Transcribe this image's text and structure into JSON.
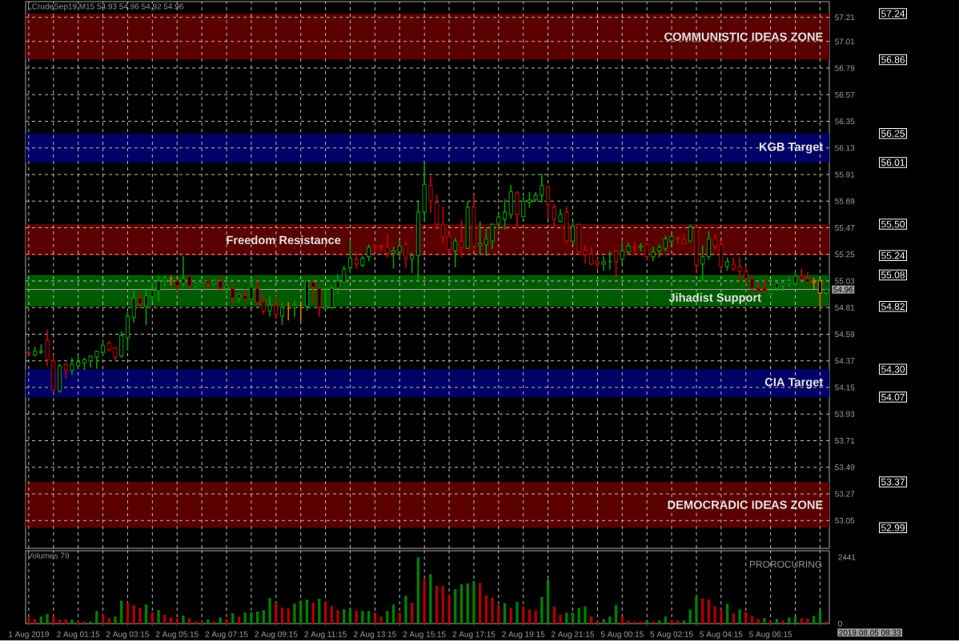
{
  "chart_data": [
    {
      "type": "candlestick",
      "title": "LCrudeSep19,M15  54.93 54.96 54.92 54.96",
      "categories": [
        null,
        null,
        null,
        null,
        null,
        null,
        null,
        null,
        null,
        null,
        null,
        null,
        null,
        null,
        null,
        null,
        null,
        null,
        null,
        null,
        null,
        null,
        null,
        null,
        null,
        null,
        null,
        null,
        null,
        null,
        null,
        null,
        null,
        null,
        null,
        null,
        null,
        null,
        null,
        null,
        null,
        null,
        null,
        null,
        null,
        null,
        null,
        null,
        null,
        null,
        null,
        null,
        null,
        null,
        null,
        null,
        null,
        null,
        null,
        null,
        null,
        null,
        null,
        null,
        null,
        null,
        null,
        null,
        null,
        null,
        null,
        null,
        null,
        null,
        null,
        null,
        null,
        null,
        null,
        null,
        null,
        null,
        null,
        null,
        null,
        null,
        null,
        null,
        null,
        null,
        null,
        null,
        null,
        null,
        null,
        null,
        null,
        null,
        null,
        null,
        null,
        null,
        null,
        null,
        null,
        null,
        null,
        null,
        null,
        null,
        null,
        null,
        null,
        null,
        null,
        null,
        null,
        null,
        null,
        null,
        null,
        null,
        null,
        null,
        null,
        null,
        null,
        null,
        null,
        null
      ],
      "ohlc": [
        [
          54.44,
          54.45,
          54.43,
          54.43
        ],
        [
          54.42,
          54.48,
          54.41,
          54.45
        ],
        [
          54.44,
          54.5,
          54.43,
          54.45
        ],
        [
          54.54,
          54.62,
          54.33,
          54.38
        ],
        [
          54.37,
          54.41,
          54.11,
          54.13
        ],
        [
          54.12,
          54.34,
          54.11,
          54.33
        ],
        [
          54.34,
          54.35,
          54.23,
          54.29
        ],
        [
          54.29,
          54.39,
          54.26,
          54.34
        ],
        [
          54.33,
          54.41,
          54.33,
          54.36
        ],
        [
          54.35,
          54.39,
          54.3,
          54.38
        ],
        [
          54.37,
          54.41,
          54.32,
          54.41
        ],
        [
          54.4,
          54.45,
          54.31,
          54.45
        ],
        [
          54.44,
          54.54,
          54.42,
          54.5
        ],
        [
          54.52,
          54.53,
          54.45,
          54.46
        ],
        [
          54.48,
          54.48,
          54.38,
          54.4
        ],
        [
          54.41,
          54.61,
          54.4,
          54.58
        ],
        [
          54.56,
          54.77,
          54.46,
          54.74
        ],
        [
          54.73,
          54.95,
          54.69,
          54.89
        ],
        [
          54.89,
          54.93,
          54.81,
          54.84
        ],
        [
          54.82,
          54.95,
          54.67,
          54.91
        ],
        [
          54.9,
          55.01,
          54.86,
          54.95
        ],
        [
          54.95,
          55.07,
          54.87,
          55.03
        ],
        [
          55.03,
          55.07,
          54.99,
          55.05
        ],
        [
          55.05,
          55.07,
          55.0,
          55.05
        ],
        [
          55.03,
          55.04,
          54.95,
          54.99
        ],
        [
          55.01,
          55.23,
          54.99,
          55.05
        ],
        [
          55.07,
          55.07,
          54.97,
          54.99
        ],
        [
          54.99,
          55.01,
          54.96,
          55.01
        ],
        [
          54.99,
          55.03,
          54.99,
          55.01
        ],
        [
          55.03,
          55.04,
          54.97,
          55.01
        ],
        [
          55.01,
          55.05,
          55.0,
          55.03
        ],
        [
          55.03,
          55.07,
          54.95,
          54.97
        ],
        [
          54.97,
          55.01,
          54.93,
          54.99
        ],
        [
          54.97,
          54.98,
          54.84,
          54.89
        ],
        [
          54.89,
          54.92,
          54.86,
          54.92
        ],
        [
          54.91,
          54.96,
          54.87,
          54.88
        ],
        [
          54.88,
          55.05,
          54.88,
          54.98
        ],
        [
          54.97,
          55.04,
          54.82,
          54.85
        ],
        [
          54.86,
          54.92,
          54.76,
          54.78
        ],
        [
          54.78,
          54.9,
          54.74,
          54.83
        ],
        [
          54.83,
          54.9,
          54.72,
          54.75
        ],
        [
          54.74,
          54.85,
          54.67,
          54.81
        ],
        [
          54.8,
          54.85,
          54.71,
          54.8
        ],
        [
          54.81,
          54.86,
          54.74,
          54.83
        ],
        [
          54.83,
          54.86,
          54.7,
          54.83
        ],
        [
          54.82,
          55.03,
          54.79,
          55.03
        ],
        [
          55.02,
          55.04,
          54.86,
          54.98
        ],
        [
          54.97,
          54.98,
          54.74,
          54.81
        ],
        [
          54.8,
          54.97,
          54.8,
          54.82
        ],
        [
          54.81,
          54.99,
          54.8,
          54.97
        ],
        [
          54.97,
          55.08,
          54.93,
          55.03
        ],
        [
          55.02,
          55.15,
          55.02,
          55.13
        ],
        [
          55.14,
          55.36,
          55.1,
          55.22
        ],
        [
          55.21,
          55.26,
          55.14,
          55.17
        ],
        [
          55.16,
          55.23,
          55.15,
          55.22
        ],
        [
          55.23,
          55.33,
          55.2,
          55.31
        ],
        [
          55.32,
          55.33,
          55.27,
          55.31
        ],
        [
          55.32,
          55.33,
          55.28,
          55.31
        ],
        [
          55.31,
          55.41,
          55.23,
          55.26
        ],
        [
          55.26,
          55.31,
          55.14,
          55.28
        ],
        [
          55.27,
          55.36,
          55.23,
          55.32
        ],
        [
          55.33,
          55.35,
          55.14,
          55.22
        ],
        [
          55.21,
          55.24,
          55.1,
          55.24
        ],
        [
          55.24,
          55.68,
          55.04,
          55.6
        ],
        [
          55.6,
          56.02,
          55.54,
          55.83
        ],
        [
          55.82,
          55.89,
          55.6,
          55.69
        ],
        [
          55.68,
          55.74,
          55.46,
          55.5
        ],
        [
          55.5,
          55.64,
          55.35,
          55.4
        ],
        [
          55.4,
          55.43,
          55.26,
          55.29
        ],
        [
          55.28,
          55.38,
          55.15,
          55.36
        ],
        [
          55.36,
          55.53,
          55.23,
          55.31
        ],
        [
          55.3,
          55.68,
          55.3,
          55.64
        ],
        [
          55.64,
          55.74,
          55.3,
          55.32
        ],
        [
          55.32,
          55.52,
          55.25,
          55.34
        ],
        [
          55.33,
          55.46,
          55.24,
          55.38
        ],
        [
          55.36,
          55.5,
          55.3,
          55.5
        ],
        [
          55.5,
          55.58,
          55.46,
          55.56
        ],
        [
          55.54,
          55.7,
          55.46,
          55.6
        ],
        [
          55.58,
          55.82,
          55.55,
          55.77
        ],
        [
          55.76,
          55.77,
          55.47,
          55.58
        ],
        [
          55.56,
          55.72,
          55.56,
          55.69
        ],
        [
          55.68,
          55.76,
          55.64,
          55.7
        ],
        [
          55.7,
          55.76,
          55.69,
          55.74
        ],
        [
          55.74,
          55.91,
          55.68,
          55.82
        ],
        [
          55.81,
          55.81,
          55.55,
          55.66
        ],
        [
          55.64,
          55.66,
          55.48,
          55.54
        ],
        [
          55.52,
          55.62,
          55.52,
          55.58
        ],
        [
          55.6,
          55.64,
          55.35,
          55.36
        ],
        [
          55.36,
          55.52,
          55.34,
          55.48
        ],
        [
          55.5,
          55.5,
          55.25,
          55.27
        ],
        [
          55.28,
          55.32,
          55.18,
          55.25
        ],
        [
          55.25,
          55.31,
          55.17,
          55.17
        ],
        [
          55.19,
          55.21,
          55.13,
          55.17
        ],
        [
          55.17,
          55.23,
          55.12,
          55.19
        ],
        [
          55.19,
          55.27,
          55.13,
          55.19
        ],
        [
          55.28,
          55.28,
          55.06,
          55.19
        ],
        [
          55.21,
          55.35,
          55.18,
          55.28
        ],
        [
          55.27,
          55.34,
          55.25,
          55.32
        ],
        [
          55.31,
          55.35,
          55.25,
          55.3
        ],
        [
          55.31,
          55.34,
          55.28,
          55.32
        ],
        [
          55.33,
          55.34,
          55.21,
          55.23
        ],
        [
          55.23,
          55.31,
          55.2,
          55.27
        ],
        [
          55.28,
          55.33,
          55.23,
          55.31
        ],
        [
          55.3,
          55.4,
          55.28,
          55.38
        ],
        [
          55.36,
          55.41,
          55.34,
          55.4
        ],
        [
          55.39,
          55.4,
          55.34,
          55.38
        ],
        [
          55.37,
          55.41,
          55.34,
          55.34
        ],
        [
          55.36,
          55.49,
          55.36,
          55.48
        ],
        [
          55.47,
          55.48,
          55.1,
          55.16
        ],
        [
          55.17,
          55.32,
          55.04,
          55.23
        ],
        [
          55.23,
          55.44,
          55.21,
          55.38
        ],
        [
          55.38,
          55.41,
          55.3,
          55.32
        ],
        [
          55.33,
          55.36,
          55.13,
          55.15
        ],
        [
          55.15,
          55.22,
          55.12,
          55.19
        ],
        [
          55.17,
          55.22,
          55.12,
          55.13
        ],
        [
          55.15,
          55.22,
          55.03,
          55.11
        ],
        [
          55.11,
          55.14,
          55.01,
          55.05
        ],
        [
          55.05,
          55.05,
          54.94,
          54.97
        ],
        [
          54.97,
          55.01,
          54.94,
          54.95
        ],
        [
          54.97,
          55.04,
          54.94,
          54.95
        ],
        [
          54.93,
          54.97,
          54.91,
          54.95
        ],
        [
          54.97,
          55.02,
          54.95,
          55.01
        ],
        [
          54.99,
          55.02,
          54.95,
          55.01
        ],
        [
          55.01,
          55.05,
          54.99,
          55.03
        ],
        [
          55.01,
          55.11,
          55.0,
          55.07
        ],
        [
          55.07,
          55.13,
          55.04,
          55.05
        ],
        [
          55.05,
          55.1,
          55.02,
          55.02
        ],
        [
          55.03,
          55.05,
          54.97,
          55.02
        ],
        [
          55.03,
          55.04,
          54.81,
          54.93
        ],
        [
          54.93,
          54.96,
          54.92,
          54.96
        ]
      ],
      "colors": [
        "#d00000",
        "#00a000",
        "#00a000",
        "#d00000",
        "#d00000",
        "#00a000",
        "#d00000",
        "#00a000",
        "#00a000",
        "#00a000",
        "#00a000",
        "#00a000",
        "#00a000",
        "#d00000",
        "#d00000",
        "#00a000",
        "#00a000",
        "#00a000",
        "#d00000",
        "#00a000",
        "#00a000",
        "#00a000",
        "#00a000",
        "#e07000",
        "#d00000",
        "#00a000",
        "#d00000",
        "#00a000",
        "#00a000",
        "#d00000",
        "#00a000",
        "#d00000",
        "#00a000",
        "#d00000",
        "#00a000",
        "#d00000",
        "#00a000",
        "#d00000",
        "#d00000",
        "#00a000",
        "#d00000",
        "#00a000",
        "#e07000",
        "#00a000",
        "#e07000",
        "#00a000",
        "#d00000",
        "#d00000",
        "#00a000",
        "#00a000",
        "#00a000",
        "#00a000",
        "#00a000",
        "#d00000",
        "#00a000",
        "#00a000",
        "#d00000",
        "#d00000",
        "#d00000",
        "#00a000",
        "#00a000",
        "#d00000",
        "#00a000",
        "#00a000",
        "#00a000",
        "#d00000",
        "#d00000",
        "#d00000",
        "#d00000",
        "#00a000",
        "#d00000",
        "#00a000",
        "#d00000",
        "#00a000",
        "#00a000",
        "#00a000",
        "#00a000",
        "#00a000",
        "#00a000",
        "#d00000",
        "#00a000",
        "#00a000",
        "#00a000",
        "#00a000",
        "#d00000",
        "#d00000",
        "#00a000",
        "#d00000",
        "#00a000",
        "#d00000",
        "#d00000",
        "#d00000",
        "#d00000",
        "#00a000",
        "#00a000",
        "#d00000",
        "#00a000",
        "#00a000",
        "#d00000",
        "#00a000",
        "#d00000",
        "#00a000",
        "#00a000",
        "#00a000",
        "#00a000",
        "#d00000",
        "#d00000",
        "#00a000",
        "#d00000",
        "#00a000",
        "#00a000",
        "#d00000",
        "#d00000",
        "#00a000",
        "#d00000",
        "#d00000",
        "#d00000",
        "#d00000",
        "#d00000",
        "#d00000",
        "#00a000",
        "#00a000",
        "#00a000",
        "#00a000",
        "#00a000",
        "#d00000",
        "#d00000",
        "#e07000",
        "#e07000",
        "#00a000"
      ],
      "ylim": [
        52.82,
        57.34
      ],
      "yticks": [
        57.21,
        57.01,
        56.79,
        56.57,
        56.35,
        56.13,
        55.91,
        55.69,
        55.47,
        55.25,
        55.03,
        54.81,
        54.59,
        54.37,
        54.15,
        53.93,
        53.71,
        53.49,
        53.27,
        53.05
      ],
      "grid": true,
      "tick_labels": "y",
      "y2lim": [
        52.82,
        57.34
      ],
      "y2ticks": [
        {
          "value": 57.24,
          "label": "57.24"
        },
        {
          "value": 56.86,
          "label": "56.86"
        },
        {
          "value": 56.25,
          "label": "56.25"
        },
        {
          "value": 56.01,
          "label": "56.01"
        },
        {
          "value": 55.5,
          "label": "55.50"
        },
        {
          "value": 55.24,
          "label": "55.24"
        },
        {
          "value": 55.08,
          "label": "55.08"
        },
        {
          "value": 54.82,
          "label": "54.82"
        },
        {
          "value": 54.3,
          "label": "54.30"
        },
        {
          "value": 54.07,
          "label": "54.07"
        },
        {
          "value": 53.37,
          "label": "53.37"
        },
        {
          "value": 52.99,
          "label": "52.99"
        }
      ],
      "bands": [
        {
          "axis": "y",
          "from": 56.86,
          "to": 57.24,
          "label": "COMMUNISTIC IDEAS ZONE",
          "color": "#5a0000"
        },
        {
          "axis": "y",
          "from": 56.01,
          "to": 56.25,
          "label": "KGB Target",
          "color": "#000066"
        },
        {
          "axis": "y",
          "from": 55.5,
          "to": 55.24,
          "label": "Freedom Resistance",
          "color": "#5a0000"
        },
        {
          "axis": "y",
          "from": 54.82,
          "to": 55.08,
          "label": "Jihadist Support",
          "color": "#005a00"
        },
        {
          "axis": "y",
          "from": 54.07,
          "to": 54.3,
          "label": "CIA Target",
          "color": "#000066"
        },
        {
          "axis": "y",
          "from": 52.99,
          "to": 53.37,
          "label": "DEMOCRADIC IDEAS ZONE",
          "color": "#5a0000"
        }
      ],
      "ref_lines": [
        {
          "axis": "y",
          "value": 54.96,
          "label": "54.96",
          "color": "#a0a0a0"
        }
      ]
    },
    {
      "type": "bar",
      "title": "Volumes 79",
      "categories": [
        "1 Aug 2019",
        null,
        null,
        null,
        null,
        null,
        null,
        null,
        "2 Aug 01:15",
        null,
        null,
        null,
        null,
        null,
        null,
        null,
        "2 Aug 03:15",
        null,
        null,
        null,
        null,
        null,
        null,
        null,
        "2 Aug 05:15",
        null,
        null,
        null,
        null,
        null,
        null,
        null,
        "2 Aug 07:15",
        null,
        null,
        null,
        null,
        null,
        null,
        null,
        "2 Aug 09:15",
        null,
        null,
        null,
        null,
        null,
        null,
        null,
        "2 Aug 11:15",
        null,
        null,
        null,
        null,
        null,
        null,
        null,
        "2 Aug 13:15",
        null,
        null,
        null,
        null,
        null,
        null,
        null,
        "2 Aug 15:15",
        null,
        null,
        null,
        null,
        null,
        null,
        null,
        "2 Aug 17:15",
        null,
        null,
        null,
        null,
        null,
        null,
        null,
        "2 Aug 19:15",
        null,
        null,
        null,
        null,
        null,
        null,
        null,
        "2 Aug 21:15",
        null,
        null,
        null,
        null,
        null,
        null,
        null,
        "5 Aug 00:15",
        null,
        null,
        null,
        null,
        null,
        null,
        null,
        "5 Aug 02:15",
        null,
        null,
        null,
        null,
        null,
        null,
        null,
        "5 Aug 04:15",
        null,
        null,
        null,
        null,
        null,
        null,
        null,
        "5 Aug 06:15",
        null,
        null,
        null,
        null,
        null,
        null,
        null,
        null,
        null
      ],
      "values": [
        226,
        170,
        260,
        350,
        294,
        147,
        147,
        147,
        79,
        79,
        79,
        463,
        328,
        203,
        260,
        848,
        768,
        678,
        588,
        701,
        407,
        497,
        328,
        226,
        203,
        294,
        203,
        90,
        57,
        147,
        79,
        226,
        170,
        384,
        260,
        407,
        418,
        441,
        497,
        938,
        768,
        588,
        554,
        735,
        848,
        881,
        768,
        915,
        825,
        644,
        497,
        531,
        554,
        463,
        463,
        463,
        407,
        260,
        463,
        701,
        407,
        1028,
        768,
        2441,
        1627,
        1819,
        1390,
        1390,
        1062,
        1266,
        1446,
        1480,
        1559,
        1503,
        1040,
        949,
        689,
        746,
        576,
        802,
        633,
        509,
        486,
        983,
        1627,
        633,
        339,
        396,
        407,
        576,
        633,
        260,
        113,
        170,
        260,
        689,
        260,
        113,
        79,
        79,
        136,
        79,
        113,
        260,
        136,
        113,
        113,
        520,
        1017,
        927,
        893,
        633,
        520,
        723,
        373,
        520,
        429,
        283,
        170,
        203,
        79,
        170,
        113,
        226,
        249,
        192,
        192,
        283,
        486,
        79
      ],
      "colors": [
        "#b00000",
        "#b00000",
        "#008000",
        "#008000",
        "#b00000",
        "#b00000",
        "#b00000",
        "#008000",
        "#b00000",
        "#b00000",
        "#008000",
        "#008000",
        "#b00000",
        "#b00000",
        "#008000",
        "#008000",
        "#b00000",
        "#b00000",
        "#b00000",
        "#008000",
        "#b00000",
        "#008000",
        "#b00000",
        "#b00000",
        "#b00000",
        "#008000",
        "#b00000",
        "#b00000",
        "#b00000",
        "#008000",
        "#b00000",
        "#008000",
        "#b00000",
        "#008000",
        "#b00000",
        "#008000",
        "#008000",
        "#008000",
        "#008000",
        "#008000",
        "#b00000",
        "#b00000",
        "#b00000",
        "#008000",
        "#008000",
        "#008000",
        "#b00000",
        "#008000",
        "#b00000",
        "#b00000",
        "#b00000",
        "#008000",
        "#008000",
        "#b00000",
        "#008000",
        "#008000",
        "#b00000",
        "#b00000",
        "#008000",
        "#008000",
        "#b00000",
        "#008000",
        "#b00000",
        "#008000",
        "#b00000",
        "#008000",
        "#b00000",
        "#b00000",
        "#b00000",
        "#008000",
        "#008000",
        "#008000",
        "#008000",
        "#b00000",
        "#b00000",
        "#b00000",
        "#b00000",
        "#008000",
        "#b00000",
        "#008000",
        "#b00000",
        "#b00000",
        "#b00000",
        "#008000",
        "#008000",
        "#b00000",
        "#b00000",
        "#008000",
        "#008000",
        "#008000",
        "#008000",
        "#b00000",
        "#b00000",
        "#008000",
        "#008000",
        "#008000",
        "#b00000",
        "#b00000",
        "#b00000",
        "#b00000",
        "#008000",
        "#b00000",
        "#008000",
        "#008000",
        "#b00000",
        "#b00000",
        "#008000",
        "#008000",
        "#008000",
        "#b00000",
        "#b00000",
        "#b00000",
        "#b00000",
        "#008000",
        "#b00000",
        "#008000",
        "#b00000",
        "#b00000",
        "#b00000",
        "#008000",
        "#b00000",
        "#008000",
        "#b00000",
        "#008000",
        "#008000",
        "#b00000",
        "#b00000",
        "#008000",
        "#008000",
        "#b00000"
      ],
      "ylim": [
        0,
        2680
      ],
      "yticks": [
        0,
        2441
      ],
      "grid": "x",
      "annotations": [
        "PROROCURING",
        "2019.08.05 08:33"
      ]
    }
  ]
}
